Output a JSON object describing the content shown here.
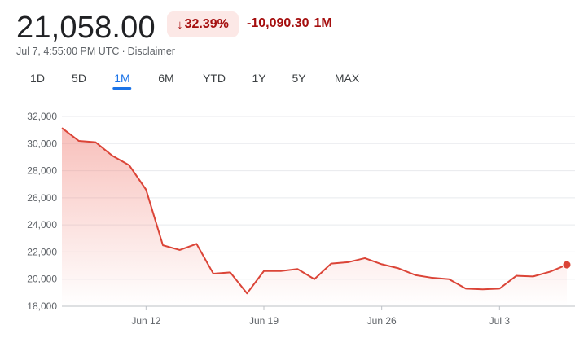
{
  "header": {
    "price": "21,058.00",
    "percent_change": "32.39%",
    "percent_arrow": "↓",
    "absolute_change": "-10,090.30",
    "period_label": "1M",
    "timestamp": "Jul 7, 4:55:00 PM UTC",
    "separator": "·",
    "disclaimer": "Disclaimer",
    "negative_color": "#a50e0e",
    "badge_bg": "#fce8e6"
  },
  "tabs": [
    {
      "label": "1D",
      "active": false
    },
    {
      "label": "5D",
      "active": false
    },
    {
      "label": "1M",
      "active": true
    },
    {
      "label": "6M",
      "active": false
    },
    {
      "label": "YTD",
      "active": false
    },
    {
      "label": "1Y",
      "active": false
    },
    {
      "label": "5Y",
      "active": false
    },
    {
      "label": "MAX",
      "active": false
    }
  ],
  "chart_data": {
    "type": "area",
    "line_color": "#db4437",
    "fill_color": "#f28b82",
    "ylim": [
      18000,
      32000
    ],
    "yticks": [
      18000,
      20000,
      22000,
      24000,
      26000,
      28000,
      30000,
      32000
    ],
    "ytick_labels": [
      "18,000",
      "20,000",
      "22,000",
      "24,000",
      "26,000",
      "28,000",
      "30,000",
      "32,000"
    ],
    "xticks": [
      {
        "label": "Jun 12",
        "date": "2022-06-12"
      },
      {
        "label": "Jun 19",
        "date": "2022-06-19"
      },
      {
        "label": "Jun 26",
        "date": "2022-06-26"
      },
      {
        "label": "Jul 3",
        "date": "2022-07-03"
      }
    ],
    "grid": true,
    "series": [
      {
        "points": [
          {
            "x": "2022-06-07",
            "y": 31150
          },
          {
            "x": "2022-06-08",
            "y": 30200
          },
          {
            "x": "2022-06-09",
            "y": 30100
          },
          {
            "x": "2022-06-10",
            "y": 29100
          },
          {
            "x": "2022-06-11",
            "y": 28400
          },
          {
            "x": "2022-06-12",
            "y": 26600
          },
          {
            "x": "2022-06-13",
            "y": 22500
          },
          {
            "x": "2022-06-14",
            "y": 22150
          },
          {
            "x": "2022-06-15",
            "y": 22600
          },
          {
            "x": "2022-06-16",
            "y": 20400
          },
          {
            "x": "2022-06-17",
            "y": 20500
          },
          {
            "x": "2022-06-18",
            "y": 18950
          },
          {
            "x": "2022-06-19",
            "y": 20600
          },
          {
            "x": "2022-06-20",
            "y": 20600
          },
          {
            "x": "2022-06-21",
            "y": 20750
          },
          {
            "x": "2022-06-22",
            "y": 20000
          },
          {
            "x": "2022-06-23",
            "y": 21150
          },
          {
            "x": "2022-06-24",
            "y": 21250
          },
          {
            "x": "2022-06-25",
            "y": 21550
          },
          {
            "x": "2022-06-26",
            "y": 21100
          },
          {
            "x": "2022-06-27",
            "y": 20800
          },
          {
            "x": "2022-06-28",
            "y": 20300
          },
          {
            "x": "2022-06-29",
            "y": 20100
          },
          {
            "x": "2022-06-30",
            "y": 20000
          },
          {
            "x": "2022-07-01",
            "y": 19300
          },
          {
            "x": "2022-07-02",
            "y": 19250
          },
          {
            "x": "2022-07-03",
            "y": 19300
          },
          {
            "x": "2022-07-04",
            "y": 20250
          },
          {
            "x": "2022-07-05",
            "y": 20200
          },
          {
            "x": "2022-07-06",
            "y": 20550
          },
          {
            "x": "2022-07-07",
            "y": 21058
          }
        ]
      }
    ]
  }
}
